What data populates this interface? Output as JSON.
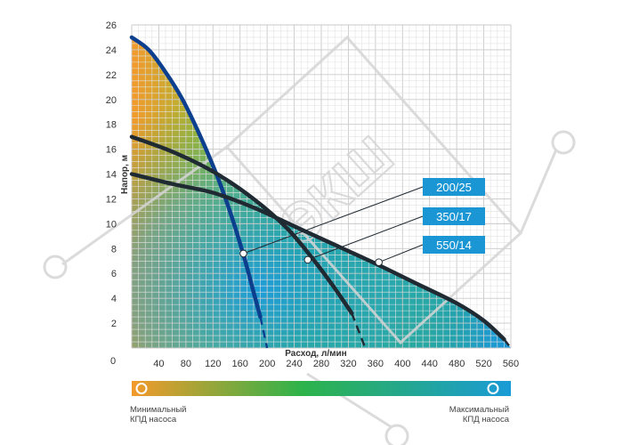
{
  "chart_data": {
    "type": "line",
    "xlabel": "Расход, л/мин",
    "ylabel": "Напор, м",
    "xlim": [
      0,
      560
    ],
    "ylim": [
      0,
      26
    ],
    "x_ticks": [
      40,
      80,
      120,
      160,
      200,
      240,
      280,
      320,
      360,
      400,
      440,
      480,
      520,
      560
    ],
    "y_ticks": [
      2,
      4,
      6,
      8,
      10,
      12,
      14,
      16,
      18,
      20,
      22,
      24,
      26
    ],
    "origin_label": "0",
    "grid": true,
    "series": [
      {
        "name": "200/25",
        "color": "#0d3f8f",
        "points": [
          [
            0,
            25
          ],
          [
            25,
            24
          ],
          [
            50,
            22.2
          ],
          [
            75,
            20
          ],
          [
            100,
            17.2
          ],
          [
            125,
            14
          ],
          [
            145,
            11
          ],
          [
            165,
            7.5
          ],
          [
            180,
            4.5
          ],
          [
            190,
            2.5
          ]
        ],
        "dashed_points": [
          [
            190,
            2.5
          ],
          [
            200,
            0
          ]
        ],
        "marker": [
          165,
          7.6
        ]
      },
      {
        "name": "350/17",
        "color": "#1f2a33",
        "points": [
          [
            0,
            17
          ],
          [
            60,
            15.8
          ],
          [
            120,
            14.2
          ],
          [
            180,
            12
          ],
          [
            230,
            9.6
          ],
          [
            270,
            7
          ],
          [
            300,
            4.8
          ],
          [
            325,
            2.8
          ]
        ],
        "dashed_points": [
          [
            325,
            2.8
          ],
          [
            345,
            0
          ]
        ],
        "marker": [
          260,
          7.1
        ]
      },
      {
        "name": "550/14",
        "color": "#1f2a33",
        "points": [
          [
            0,
            14
          ],
          [
            60,
            13.2
          ],
          [
            120,
            12.5
          ],
          [
            180,
            11.3
          ],
          [
            240,
            9.8
          ],
          [
            300,
            8.3
          ],
          [
            360,
            6.8
          ],
          [
            420,
            5.2
          ],
          [
            480,
            3.6
          ],
          [
            520,
            2.2
          ],
          [
            550,
            0.7
          ]
        ],
        "dashed_points": [
          [
            550,
            0.7
          ],
          [
            560,
            0
          ]
        ],
        "marker": [
          365,
          6.9
        ]
      }
    ],
    "colorbar": {
      "min_label": "Минимальный\nКПД насоса",
      "max_label": "Максимальный\nКПД насоса",
      "colors": [
        "#f59a2a",
        "#2ab24a",
        "#1a9bd7"
      ]
    }
  }
}
